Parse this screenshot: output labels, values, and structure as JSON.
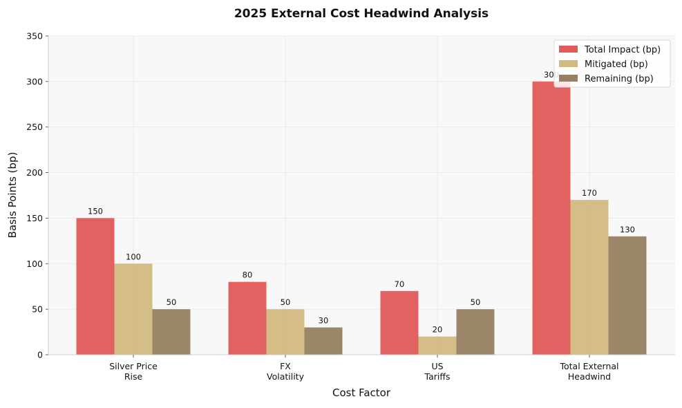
{
  "chart_data": {
    "type": "bar",
    "title": "2025 External Cost Headwind Analysis",
    "xlabel": "Cost Factor",
    "ylabel": "Basis Points (bp)",
    "ylim": [
      0,
      350
    ],
    "yticks": [
      0,
      50,
      100,
      150,
      200,
      250,
      300,
      350
    ],
    "grid": true,
    "legend_position": "top-right",
    "categories": [
      [
        "Silver Price",
        "Rise"
      ],
      [
        "FX",
        "Volatility"
      ],
      [
        "US",
        "Tariffs"
      ],
      [
        "Total External",
        "Headwind"
      ]
    ],
    "series": [
      {
        "name": "Total Impact (bp)",
        "color": "#e05a5a",
        "values": [
          150,
          80,
          70,
          300
        ]
      },
      {
        "name": "Mitigated (bp)",
        "color": "#d2b97f",
        "values": [
          100,
          50,
          20,
          170
        ]
      },
      {
        "name": "Remaining (bp)",
        "color": "#967f62",
        "values": [
          50,
          30,
          50,
          130
        ]
      }
    ],
    "plot_background": "#f8f8f8"
  }
}
